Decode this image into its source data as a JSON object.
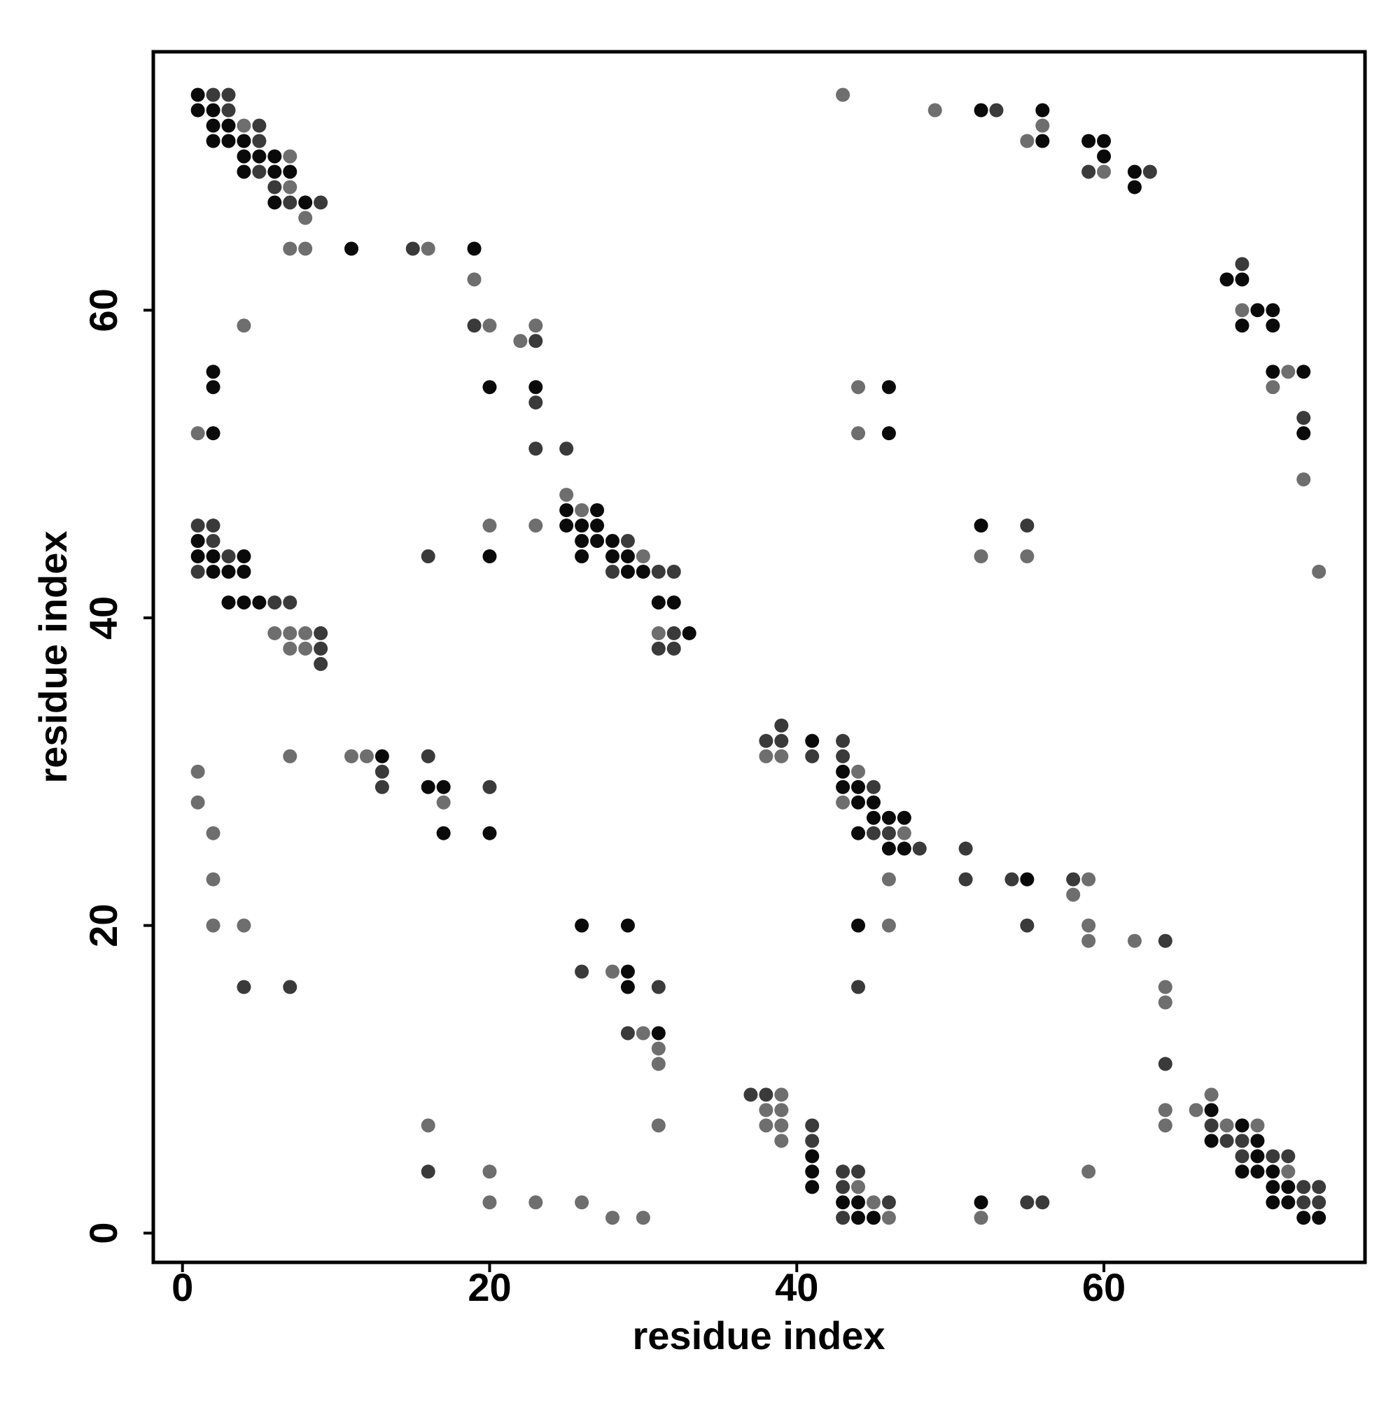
{
  "chart_data": {
    "type": "scatter",
    "x_label": "residue index",
    "y_label": "residue index",
    "xlim": [
      -1.9,
      77
    ],
    "ylim": [
      -1.9,
      76.8
    ],
    "xticks": [
      0,
      20,
      40,
      60
    ],
    "yticks": [
      0,
      20,
      40,
      60
    ],
    "grid": false,
    "series": [
      {
        "color": "#0a0a0a",
        "x": [
          1,
          1,
          2,
          52,
          56,
          2,
          3,
          2,
          3,
          4,
          56,
          59,
          60,
          4,
          5,
          6,
          60,
          4,
          6,
          7,
          62,
          62,
          6,
          8,
          11,
          19,
          68,
          69,
          70,
          71,
          69,
          71,
          2,
          71,
          73,
          2,
          20,
          23,
          46,
          2,
          46,
          73,
          25,
          27,
          25,
          26,
          27,
          52,
          1,
          26,
          27,
          28,
          1,
          2,
          4,
          20,
          26,
          28,
          29,
          2,
          3,
          4,
          29,
          30,
          3,
          4,
          5,
          31,
          32,
          33,
          41,
          13,
          43,
          16,
          17,
          43,
          44,
          44,
          45,
          45,
          46,
          47,
          17,
          20,
          44,
          46,
          47,
          55,
          26,
          29,
          44,
          29,
          29,
          31,
          67,
          69,
          67,
          70,
          41,
          70,
          41,
          69,
          70,
          71,
          41,
          71,
          72,
          43,
          44,
          52,
          71,
          72,
          44,
          45,
          73,
          74
        ],
        "values": [
          74,
          73,
          73,
          73,
          73,
          72,
          72,
          71,
          71,
          71,
          71,
          71,
          71,
          70,
          70,
          70,
          70,
          69,
          69,
          69,
          69,
          68,
          67,
          67,
          64,
          64,
          62,
          62,
          60,
          60,
          59,
          59,
          56,
          56,
          56,
          55,
          55,
          55,
          55,
          52,
          52,
          52,
          47,
          47,
          46,
          46,
          46,
          46,
          45,
          45,
          45,
          45,
          44,
          44,
          44,
          44,
          44,
          44,
          44,
          43,
          43,
          43,
          43,
          43,
          41,
          41,
          41,
          41,
          41,
          39,
          32,
          31,
          30,
          29,
          29,
          29,
          29,
          28,
          28,
          27,
          27,
          27,
          26,
          26,
          26,
          25,
          25,
          23,
          20,
          20,
          20,
          17,
          16,
          13,
          8,
          7,
          6,
          6,
          5,
          5,
          4,
          4,
          4,
          4,
          3,
          3,
          3,
          2,
          2,
          2,
          2,
          2,
          1,
          1,
          1,
          1
        ]
      },
      {
        "color": "#3a3a3a",
        "x": [
          2,
          3,
          3,
          53,
          5,
          5,
          5,
          59,
          63,
          6,
          7,
          9,
          15,
          69,
          19,
          23,
          23,
          73,
          23,
          25,
          1,
          2,
          55,
          2,
          29,
          3,
          16,
          1,
          28,
          31,
          32,
          6,
          7,
          9,
          32,
          9,
          31,
          32,
          9,
          39,
          38,
          39,
          43,
          16,
          41,
          43,
          13,
          13,
          20,
          45,
          45,
          46,
          48,
          51,
          51,
          54,
          58,
          55,
          64,
          26,
          4,
          7,
          31,
          44,
          29,
          64,
          37,
          38,
          41,
          67,
          41,
          68,
          69,
          69,
          71,
          72,
          16,
          43,
          44,
          43,
          73,
          74,
          46,
          55,
          56,
          73,
          74,
          43
        ],
        "values": [
          74,
          74,
          73,
          73,
          72,
          71,
          69,
          69,
          69,
          68,
          67,
          67,
          64,
          63,
          59,
          58,
          54,
          53,
          51,
          51,
          46,
          46,
          46,
          45,
          45,
          44,
          44,
          43,
          43,
          43,
          43,
          41,
          41,
          39,
          39,
          38,
          38,
          38,
          37,
          33,
          32,
          32,
          32,
          31,
          31,
          31,
          30,
          29,
          29,
          29,
          26,
          26,
          25,
          25,
          23,
          23,
          23,
          20,
          19,
          17,
          16,
          16,
          16,
          16,
          13,
          11,
          9,
          9,
          7,
          7,
          6,
          6,
          6,
          5,
          5,
          5,
          4,
          4,
          4,
          3,
          3,
          3,
          2,
          2,
          2,
          2,
          2,
          1
        ]
      },
      {
        "color": "#6e6e6e",
        "x": [
          43,
          49,
          4,
          56,
          55,
          7,
          60,
          7,
          8,
          7,
          8,
          16,
          19,
          69,
          4,
          20,
          23,
          22,
          72,
          44,
          71,
          1,
          44,
          73,
          25,
          26,
          20,
          23,
          30,
          52,
          55,
          74,
          6,
          7,
          8,
          31,
          7,
          8,
          7,
          11,
          12,
          38,
          39,
          1,
          44,
          1,
          17,
          43,
          2,
          47,
          2,
          46,
          59,
          58,
          2,
          4,
          46,
          59,
          59,
          62,
          28,
          64,
          64,
          30,
          31,
          31,
          39,
          67,
          38,
          39,
          64,
          66,
          16,
          31,
          38,
          39,
          64,
          68,
          70,
          39,
          20,
          59,
          72,
          44,
          20,
          23,
          26,
          45,
          28,
          30,
          46,
          52
        ],
        "values": [
          74,
          73,
          72,
          72,
          71,
          70,
          69,
          68,
          66,
          64,
          64,
          64,
          62,
          60,
          59,
          59,
          59,
          58,
          56,
          55,
          55,
          52,
          52,
          49,
          48,
          47,
          46,
          46,
          44,
          44,
          44,
          43,
          39,
          39,
          39,
          39,
          38,
          38,
          31,
          31,
          31,
          31,
          31,
          30,
          30,
          28,
          28,
          28,
          26,
          26,
          23,
          23,
          23,
          22,
          20,
          20,
          20,
          20,
          19,
          19,
          17,
          16,
          15,
          13,
          12,
          11,
          9,
          9,
          8,
          8,
          8,
          8,
          7,
          7,
          7,
          7,
          7,
          7,
          7,
          6,
          4,
          4,
          4,
          3,
          2,
          2,
          2,
          2,
          1,
          1,
          1,
          1
        ]
      }
    ]
  }
}
